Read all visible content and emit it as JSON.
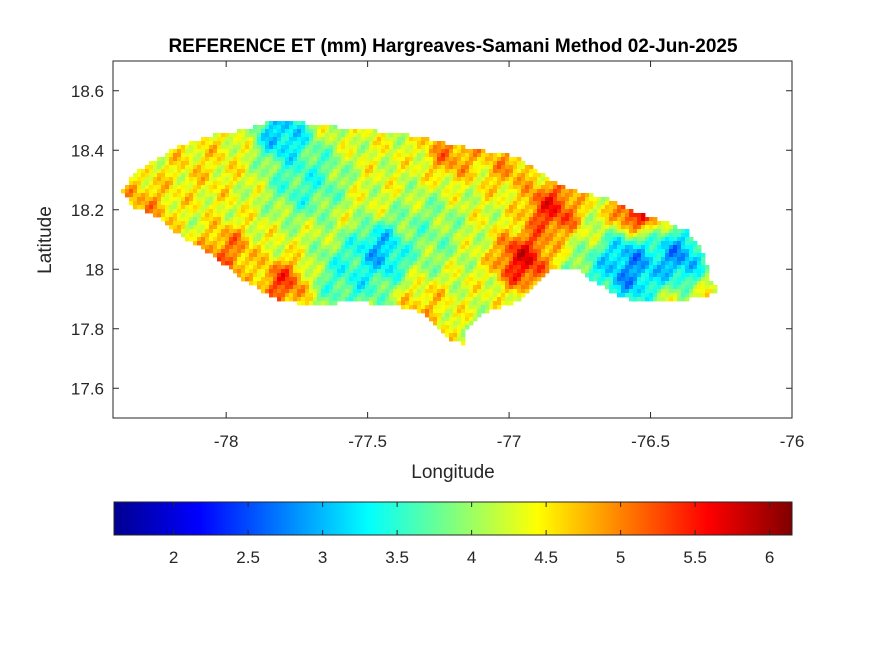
{
  "figure": {
    "title": "REFERENCE ET (mm) Hargreaves-Samani Method  02-Jun-2025"
  },
  "chart_data": {
    "type": "heatmap",
    "title": "REFERENCE ET (mm) Hargreaves-Samani Method  02-Jun-2025",
    "xlabel": "Longitude",
    "ylabel": "Latitude",
    "xlim": [
      -78.4,
      -76
    ],
    "ylim": [
      17.5,
      18.7
    ],
    "xticks": [
      -78,
      -77.5,
      -77,
      -76.5,
      -76
    ],
    "yticks": [
      17.6,
      17.8,
      18,
      18.2,
      18.4,
      18.6
    ],
    "xtick_labels": [
      "-78",
      "-77.5",
      "-77",
      "-76.5",
      "-76"
    ],
    "ytick_labels": [
      "17.6",
      "17.8",
      "18",
      "18.2",
      "18.4",
      "18.6"
    ],
    "colormap": "jet",
    "colorbar": {
      "orientation": "horizontal",
      "location": "bottom",
      "range": [
        1.6,
        6.15
      ],
      "ticks": [
        2,
        2.5,
        3,
        3.5,
        4,
        4.5,
        5,
        5.5,
        6
      ],
      "tick_labels": [
        "2",
        "2.5",
        "3",
        "3.5",
        "4",
        "4.5",
        "5",
        "5.5",
        "6"
      ]
    },
    "region": "Jamaica",
    "outline": [
      [
        -78.37,
        18.27
      ],
      [
        -78.31,
        18.33
      ],
      [
        -78.23,
        18.38
      ],
      [
        -78.15,
        18.42
      ],
      [
        -78.05,
        18.45
      ],
      [
        -77.93,
        18.47
      ],
      [
        -77.83,
        18.5
      ],
      [
        -77.7,
        18.49
      ],
      [
        -77.55,
        18.47
      ],
      [
        -77.4,
        18.46
      ],
      [
        -77.25,
        18.43
      ],
      [
        -77.1,
        18.4
      ],
      [
        -76.97,
        18.38
      ],
      [
        -76.9,
        18.33
      ],
      [
        -76.82,
        18.28
      ],
      [
        -76.75,
        18.26
      ],
      [
        -76.65,
        18.24
      ],
      [
        -76.55,
        18.19
      ],
      [
        -76.45,
        18.16
      ],
      [
        -76.37,
        18.13
      ],
      [
        -76.31,
        18.05
      ],
      [
        -76.29,
        17.97
      ],
      [
        -76.25,
        17.93
      ],
      [
        -76.31,
        17.91
      ],
      [
        -76.42,
        17.89
      ],
      [
        -76.55,
        17.89
      ],
      [
        -76.63,
        17.92
      ],
      [
        -76.7,
        17.96
      ],
      [
        -76.76,
        18.0
      ],
      [
        -76.85,
        18.0
      ],
      [
        -76.91,
        17.95
      ],
      [
        -76.97,
        17.89
      ],
      [
        -77.04,
        17.87
      ],
      [
        -77.1,
        17.85
      ],
      [
        -77.15,
        17.8
      ],
      [
        -77.16,
        17.75
      ],
      [
        -77.21,
        17.76
      ],
      [
        -77.3,
        17.85
      ],
      [
        -77.4,
        17.88
      ],
      [
        -77.55,
        17.89
      ],
      [
        -77.72,
        17.88
      ],
      [
        -77.82,
        17.9
      ],
      [
        -77.95,
        17.97
      ],
      [
        -78.05,
        18.05
      ],
      [
        -78.17,
        18.12
      ],
      [
        -78.25,
        18.18
      ],
      [
        -78.33,
        18.21
      ],
      [
        -78.37,
        18.27
      ]
    ],
    "field": {
      "base": 4.3,
      "bumps": [
        {
          "lon": -77.8,
          "lat": 18.45,
          "value": 2.6,
          "radius": 0.07
        },
        {
          "lon": -77.72,
          "lat": 18.3,
          "value": 3.3,
          "radius": 0.1
        },
        {
          "lon": -77.45,
          "lat": 18.06,
          "value": 2.5,
          "radius": 0.07
        },
        {
          "lon": -77.55,
          "lat": 17.98,
          "value": 3.2,
          "radius": 0.1
        },
        {
          "lon": -77.3,
          "lat": 18.12,
          "value": 3.7,
          "radius": 0.1
        },
        {
          "lon": -76.58,
          "lat": 18.0,
          "value": 2.3,
          "radius": 0.09
        },
        {
          "lon": -76.4,
          "lat": 18.04,
          "value": 2.4,
          "radius": 0.07
        },
        {
          "lon": -76.7,
          "lat": 17.95,
          "value": 3.4,
          "radius": 0.08
        },
        {
          "lon": -76.95,
          "lat": 18.03,
          "value": 6.0,
          "radius": 0.07
        },
        {
          "lon": -76.85,
          "lat": 18.2,
          "value": 5.8,
          "radius": 0.07
        },
        {
          "lon": -76.55,
          "lat": 18.2,
          "value": 6.0,
          "radius": 0.06
        },
        {
          "lon": -78.3,
          "lat": 18.2,
          "value": 5.0,
          "radius": 0.08
        },
        {
          "lon": -78.0,
          "lat": 18.05,
          "value": 5.3,
          "radius": 0.07
        },
        {
          "lon": -77.8,
          "lat": 17.95,
          "value": 5.6,
          "radius": 0.06
        },
        {
          "lon": -77.2,
          "lat": 18.4,
          "value": 5.2,
          "radius": 0.07
        },
        {
          "lon": -77.0,
          "lat": 18.35,
          "value": 5.0,
          "radius": 0.07
        },
        {
          "lon": -77.3,
          "lat": 17.87,
          "value": 4.8,
          "radius": 0.06
        },
        {
          "lon": -78.1,
          "lat": 18.35,
          "value": 4.6,
          "radius": 0.1
        }
      ]
    }
  }
}
